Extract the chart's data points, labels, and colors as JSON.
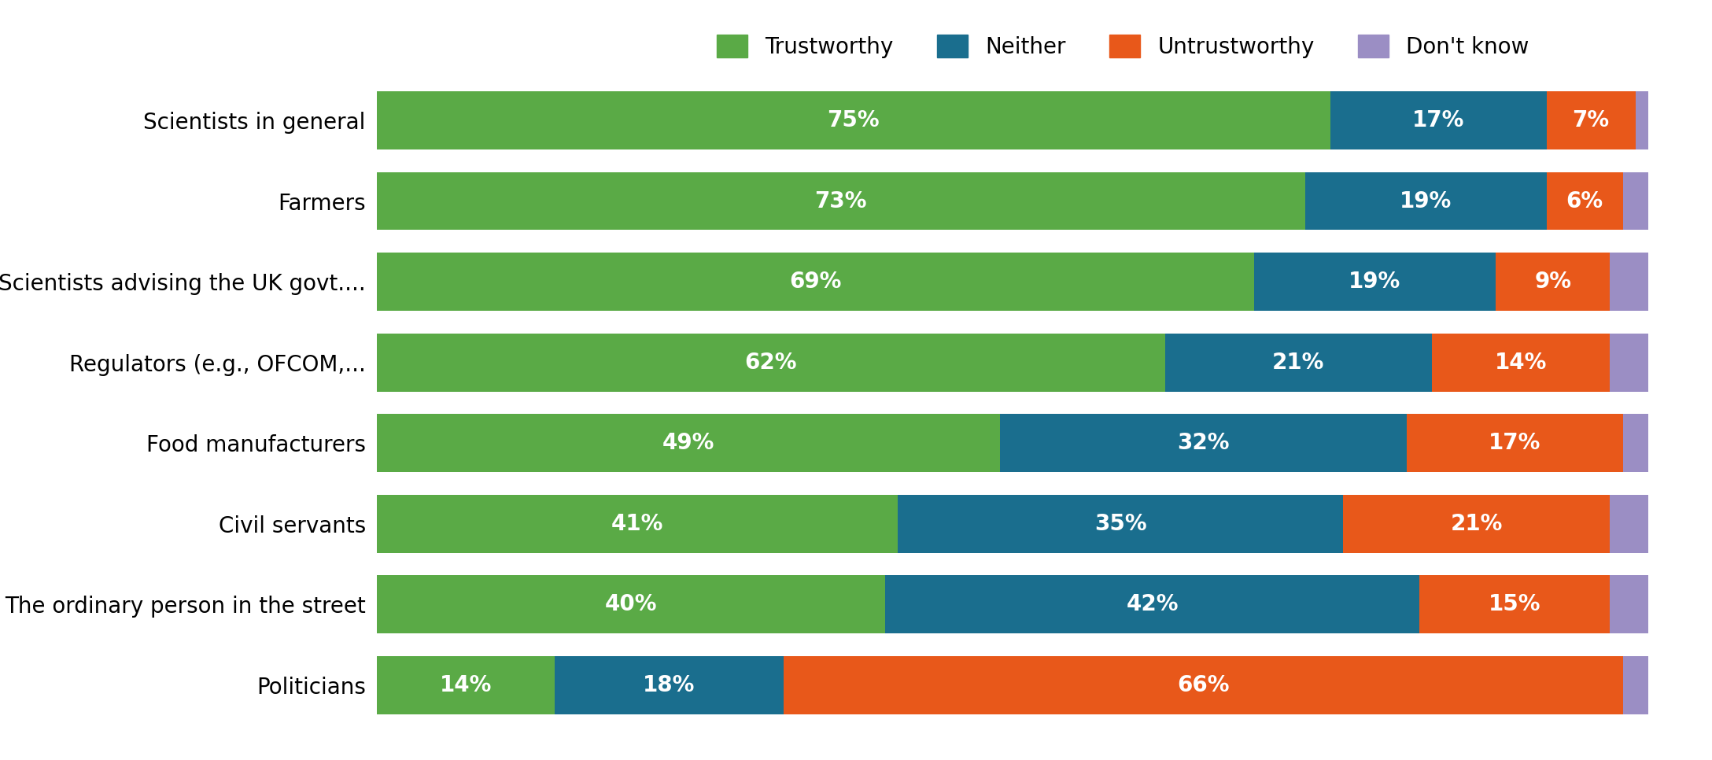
{
  "categories": [
    "Politicians",
    "The ordinary person in the street",
    "Civil servants",
    "Food manufacturers",
    "Regulators (e.g., OFCOM,...",
    "Scientists advising the UK govt....",
    "Farmers",
    "Scientists in general"
  ],
  "trustworthy": [
    14,
    40,
    41,
    49,
    62,
    69,
    73,
    75
  ],
  "neither": [
    18,
    42,
    35,
    32,
    21,
    19,
    19,
    17
  ],
  "untrustworthy": [
    66,
    15,
    21,
    17,
    14,
    9,
    6,
    7
  ],
  "dont_know": [
    2,
    3,
    3,
    2,
    3,
    3,
    2,
    1
  ],
  "colors": {
    "trustworthy": "#5aaa46",
    "neither": "#1a6e8e",
    "untrustworthy": "#e8581a",
    "dont_know": "#9b8ec4"
  },
  "legend_labels": [
    "Trustworthy",
    "Neither",
    "Untrustworthy",
    "Don't know"
  ],
  "bar_height": 0.72,
  "label_fontsize": 20,
  "tick_fontsize": 20,
  "legend_fontsize": 20,
  "background_color": "#ffffff"
}
